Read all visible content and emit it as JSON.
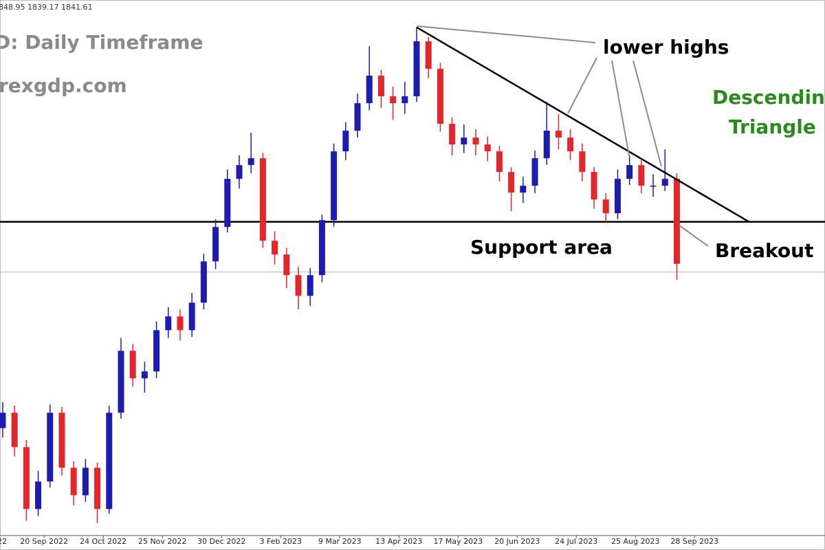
{
  "chart_data": {
    "type": "candlestick",
    "quote": "848.95 1839.17 1841.61",
    "heading": "D: Daily Timeframe",
    "site": "rexgdp.com",
    "xlim": [
      -0.23,
      69.53
    ],
    "ylim": [
      1620,
      2071
    ],
    "xticks": [
      {
        "value": -1.5,
        "label": "22"
      },
      {
        "value": 3.5,
        "label": "20 Sep 2022"
      },
      {
        "value": 8.5,
        "label": "24 Oct 2022"
      },
      {
        "value": 13.5,
        "label": "25 Nov 2022"
      },
      {
        "value": 18.5,
        "label": "30 Dec 2022"
      },
      {
        "value": 23.5,
        "label": "3 Feb 2023"
      },
      {
        "value": 28.5,
        "label": "9 Mar 2023"
      },
      {
        "value": 33.5,
        "label": "13 Apr 2023"
      },
      {
        "value": 38.5,
        "label": "17 May 2023"
      },
      {
        "value": 43.5,
        "label": "20 Jun 2023"
      },
      {
        "value": 48.5,
        "label": "24 Jul 2023"
      },
      {
        "value": 53.5,
        "label": "25 Aug 2023"
      },
      {
        "value": 58.5,
        "label": "28 Sep 2023"
      }
    ],
    "up_color": "#1c1cb0",
    "down_color": "#e3262c",
    "open": [
      1710,
      1723,
      1694,
      1641.8,
      1665,
      1723,
      1676.6,
      1653.4,
      1676.6,
      1641.8,
      1723,
      1775.2,
      1752,
      1757.8,
      1792.6,
      1804.2,
      1792.6,
      1815.8,
      1850.6,
      1879.6,
      1920.2,
      1931.8,
      1937.6,
      1868,
      1856.4,
      1839,
      1821.6,
      1839,
      1885.4,
      1943.4,
      1960.8,
      1984,
      2007.2,
      1989.8,
      1984,
      1989.8,
      2036.2,
      2013,
      1966.6,
      1949.2,
      1955,
      1949.2,
      1943.4,
      1926,
      1908.6,
      1914.4,
      1937.6,
      1960.8,
      1955,
      1943.4,
      1926,
      1902.8,
      1891.2,
      1920.2,
      1931.8,
      1914.4,
      1914.4,
      1920.2
    ],
    "high": [
      1732,
      1729,
      1700,
      1674,
      1730,
      1728,
      1682,
      1684,
      1681,
      1729,
      1786,
      1781,
      1766,
      1800,
      1812,
      1810,
      1824,
      1857,
      1886,
      1928,
      1940,
      1959,
      1942,
      1876,
      1862,
      1846,
      1845,
      1890,
      1950,
      1968,
      1992,
      2032,
      2012,
      1998,
      2002,
      2048,
      2040,
      2018,
      1972,
      1966,
      1962,
      1956,
      1948,
      1930,
      1922,
      1944,
      1985,
      1975,
      1962,
      1950,
      1930,
      1908,
      1928,
      1940,
      1936,
      1924,
      1945,
      1925
    ],
    "low": [
      1702,
      1686,
      1632,
      1636,
      1660,
      1670,
      1645,
      1648,
      1630,
      1638,
      1718,
      1745,
      1740,
      1752,
      1786,
      1784,
      1787,
      1810,
      1844,
      1875,
      1912,
      1925,
      1862,
      1848,
      1828,
      1810,
      1813,
      1833,
      1880,
      1936,
      1955,
      1978,
      1980,
      1970,
      1975,
      1985,
      2005,
      1960,
      1940,
      1942,
      1940,
      1935,
      1918,
      1893,
      1900,
      1908,
      1932,
      1945,
      1936,
      1918,
      1895,
      1884,
      1886,
      1915,
      1908,
      1905,
      1910,
      1835
    ],
    "close": [
      1723,
      1694,
      1641.8,
      1665,
      1723,
      1676.6,
      1653.4,
      1676.6,
      1641.8,
      1723,
      1775.2,
      1752,
      1757.8,
      1792.6,
      1804.2,
      1792.6,
      1815.8,
      1850.6,
      1879.6,
      1920.2,
      1931.8,
      1937.6,
      1868,
      1856.4,
      1839,
      1821.6,
      1839,
      1885.4,
      1943.4,
      1960.8,
      1984,
      2007.2,
      1989.8,
      1984,
      1989.8,
      2036.2,
      2013,
      1966.6,
      1949.2,
      1955,
      1949.2,
      1943.4,
      1926,
      1908.6,
      1914.4,
      1937.6,
      1960.8,
      1955,
      1943.4,
      1926,
      1902.8,
      1891.2,
      1920.2,
      1931.8,
      1914.4,
      1914.4,
      1920.2,
      1848.6
    ],
    "trendline": {
      "x": [
        35,
        63.1
      ],
      "y": [
        2048,
        1884
      ]
    },
    "support_level": 1884,
    "price_line": 1841.61,
    "annotations": {
      "lower_highs": "lower highs",
      "pattern_1": "Descending",
      "pattern_2": "Triangle",
      "support": "Support area",
      "breakout": "Breakout"
    }
  }
}
